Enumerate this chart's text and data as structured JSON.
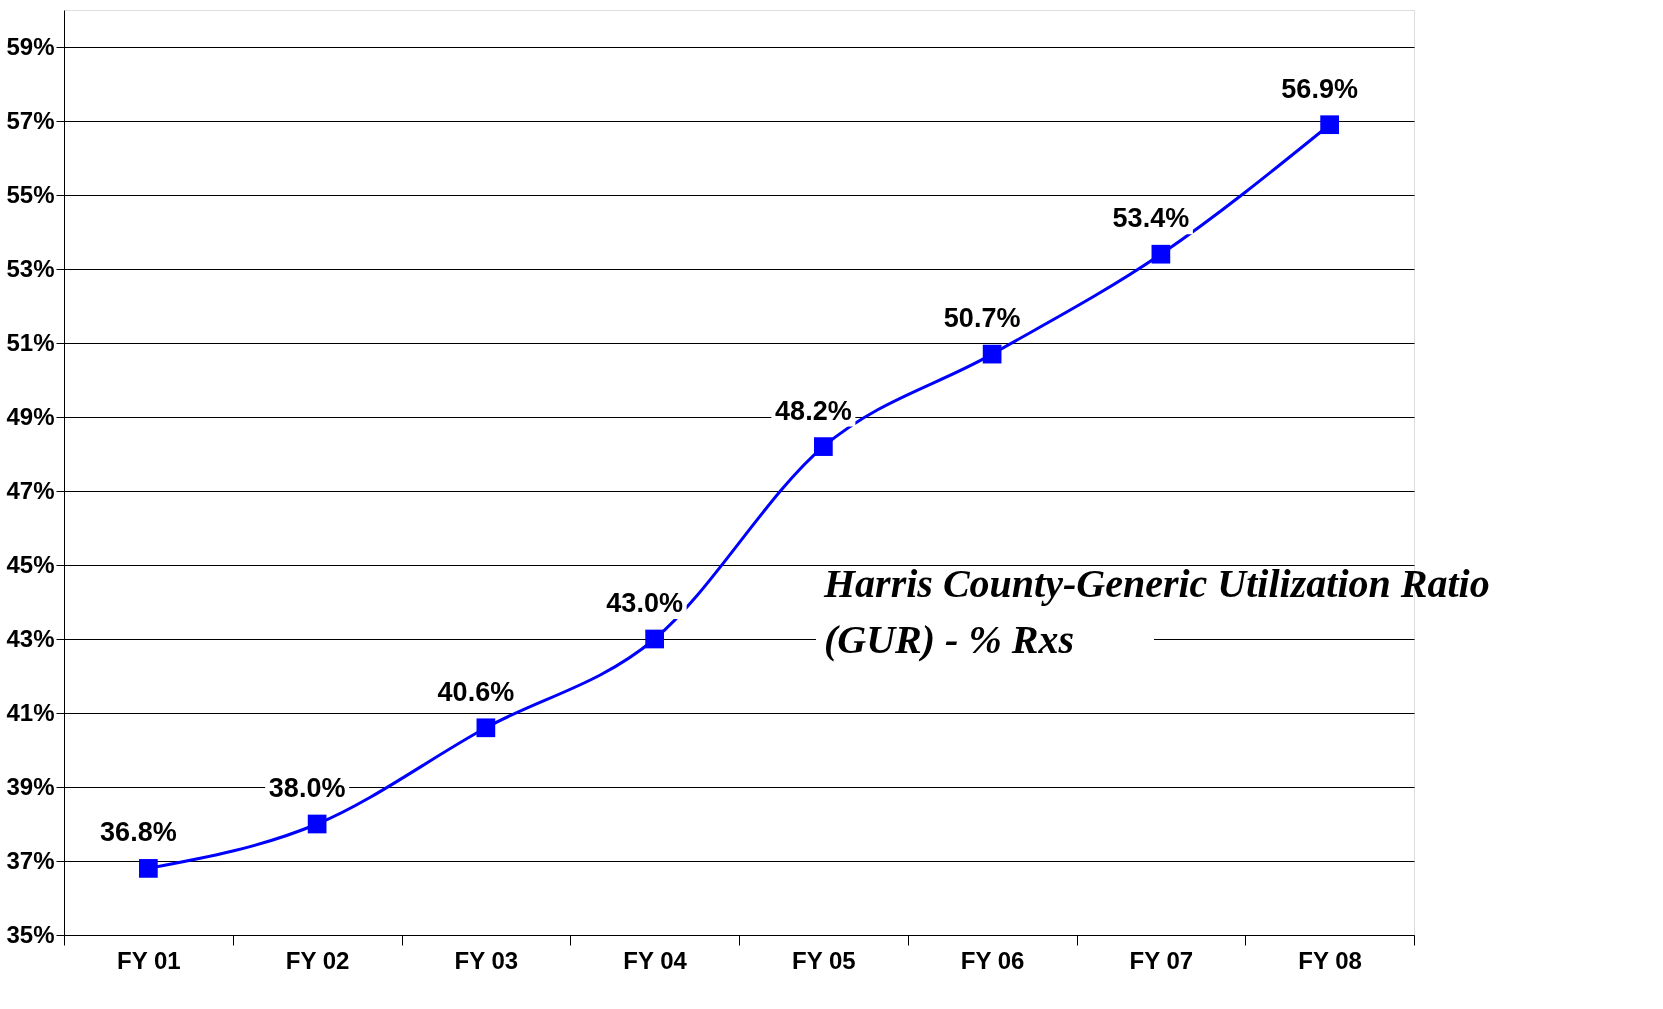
{
  "chart_data": {
    "type": "line",
    "title": "Harris County-Generic Utilization Ratio\n(GUR) - % Rxs",
    "categories": [
      "FY 01",
      "FY 02",
      "FY 03",
      "FY 04",
      "FY 05",
      "FY 06",
      "FY 07",
      "FY 08"
    ],
    "series": [
      {
        "color": "#0000ff",
        "values": [
          36.8,
          38.0,
          40.6,
          43.0,
          48.2,
          50.7,
          53.4,
          56.9
        ]
      }
    ],
    "value_labels": [
      "36.8%",
      "38.0%",
      "40.6%",
      "43.0%",
      "48.2%",
      "50.7%",
      "53.4%",
      "56.9%"
    ],
    "ylim": [
      35,
      60
    ],
    "yticks": [
      {
        "value": 35,
        "label": "35%"
      },
      {
        "value": 37,
        "label": "37%"
      },
      {
        "value": 39,
        "label": "39%"
      },
      {
        "value": 41,
        "label": "41%"
      },
      {
        "value": 43,
        "label": "43%"
      },
      {
        "value": 45,
        "label": "45%"
      },
      {
        "value": 47,
        "label": "47%"
      },
      {
        "value": 49,
        "label": "49%"
      },
      {
        "value": 51,
        "label": "51%"
      },
      {
        "value": 53,
        "label": "53%"
      },
      {
        "value": 55,
        "label": "55%"
      },
      {
        "value": 57,
        "label": "57%"
      },
      {
        "value": 59,
        "label": "59%"
      }
    ],
    "grid": "y",
    "marker": "square",
    "line_style": "solid"
  }
}
